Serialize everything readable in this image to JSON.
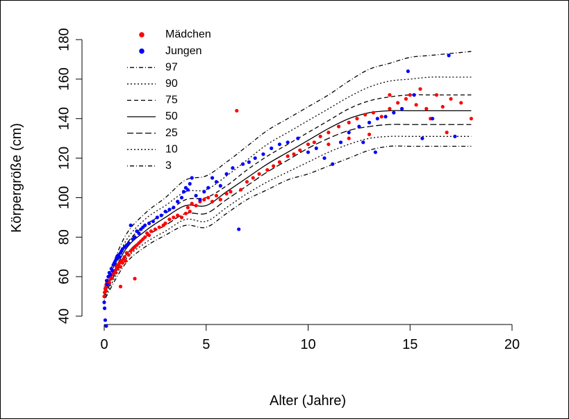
{
  "chart_data": {
    "type": "scatter",
    "xlabel": "Alter (Jahre)",
    "ylabel": "Körpergröße (cm)",
    "xlim": [
      0,
      20
    ],
    "ylim": [
      35,
      182
    ],
    "x_ticks": [
      "0",
      "5",
      "10",
      "15",
      "20"
    ],
    "y_ticks": [
      "40",
      "60",
      "80",
      "100",
      "120",
      "140",
      "160",
      "180"
    ],
    "grid": false,
    "legend_position": "top-left",
    "series_points": [
      {
        "name": "Mädchen",
        "color": "#ff0000",
        "points": [
          [
            0,
            50
          ],
          [
            0.02,
            52
          ],
          [
            0.05,
            54
          ],
          [
            0.08,
            53
          ],
          [
            0.1,
            56
          ],
          [
            0.12,
            55
          ],
          [
            0.15,
            57
          ],
          [
            0.2,
            58
          ],
          [
            0.25,
            57
          ],
          [
            0.3,
            60
          ],
          [
            0.35,
            59
          ],
          [
            0.4,
            61
          ],
          [
            0.45,
            62
          ],
          [
            0.5,
            63
          ],
          [
            0.55,
            62
          ],
          [
            0.6,
            65
          ],
          [
            0.65,
            64
          ],
          [
            0.7,
            66
          ],
          [
            0.75,
            67
          ],
          [
            0.8,
            65
          ],
          [
            0.85,
            68
          ],
          [
            0.9,
            67
          ],
          [
            0.95,
            69
          ],
          [
            1,
            70
          ],
          [
            1.05,
            68
          ],
          [
            1.1,
            72
          ],
          [
            1.2,
            71
          ],
          [
            1.3,
            73
          ],
          [
            1.4,
            74
          ],
          [
            1.5,
            75
          ],
          [
            1.6,
            76
          ],
          [
            1.7,
            77
          ],
          [
            1.8,
            78
          ],
          [
            1.9,
            79
          ],
          [
            2,
            80
          ],
          [
            2.1,
            82
          ],
          [
            2.2,
            81
          ],
          [
            2.3,
            83
          ],
          [
            2.5,
            84
          ],
          [
            2.7,
            85
          ],
          [
            2.9,
            86
          ],
          [
            3.0,
            87
          ],
          [
            3.2,
            89
          ],
          [
            3.4,
            90
          ],
          [
            3.6,
            91
          ],
          [
            3.8,
            90
          ],
          [
            4.0,
            92
          ],
          [
            4.1,
            95
          ],
          [
            4.2,
            93
          ],
          [
            4.3,
            97
          ],
          [
            4.5,
            96
          ],
          [
            4.7,
            98
          ],
          [
            4.9,
            99
          ],
          [
            5.1,
            100
          ],
          [
            5.3,
            98
          ],
          [
            5.5,
            101
          ],
          [
            5.7,
            99
          ],
          [
            6.0,
            102
          ],
          [
            6.2,
            103
          ],
          [
            6.5,
            144
          ],
          [
            6.7,
            104
          ],
          [
            7.0,
            108
          ],
          [
            7.3,
            110
          ],
          [
            7.6,
            112
          ],
          [
            8.0,
            114
          ],
          [
            8.3,
            116
          ],
          [
            8.6,
            118
          ],
          [
            9.0,
            121
          ],
          [
            9.3,
            122
          ],
          [
            9.6,
            124
          ],
          [
            10.0,
            127
          ],
          [
            10.3,
            128
          ],
          [
            10.6,
            131
          ],
          [
            11.0,
            133
          ],
          [
            11.5,
            136
          ],
          [
            12.0,
            138
          ],
          [
            12.4,
            140
          ],
          [
            12.8,
            142
          ],
          [
            13.2,
            143
          ],
          [
            13.6,
            141
          ],
          [
            14.0,
            145
          ],
          [
            14.4,
            148
          ],
          [
            14.8,
            150
          ],
          [
            15.0,
            152
          ],
          [
            15.3,
            147
          ],
          [
            15.5,
            155
          ],
          [
            15.8,
            145
          ],
          [
            16.0,
            140
          ],
          [
            16.3,
            152
          ],
          [
            16.6,
            146
          ],
          [
            16.8,
            133
          ],
          [
            17.0,
            150
          ],
          [
            17.5,
            148
          ],
          [
            18.0,
            140
          ],
          [
            14.0,
            152
          ],
          [
            13.0,
            132
          ],
          [
            12.0,
            130
          ],
          [
            11.0,
            127
          ],
          [
            1.5,
            59
          ],
          [
            0.8,
            55
          ]
        ]
      },
      {
        "name": "Jungen",
        "color": "#0000ff",
        "points": [
          [
            0,
            47
          ],
          [
            0.02,
            44
          ],
          [
            0.05,
            38
          ],
          [
            0.1,
            35
          ],
          [
            0.12,
            58
          ],
          [
            0.15,
            56
          ],
          [
            0.2,
            60
          ],
          [
            0.25,
            62
          ],
          [
            0.3,
            61
          ],
          [
            0.35,
            64
          ],
          [
            0.4,
            63
          ],
          [
            0.45,
            66
          ],
          [
            0.5,
            67
          ],
          [
            0.55,
            68
          ],
          [
            0.6,
            69
          ],
          [
            0.65,
            70
          ],
          [
            0.7,
            71
          ],
          [
            0.75,
            70
          ],
          [
            0.8,
            72
          ],
          [
            0.85,
            73
          ],
          [
            0.9,
            74
          ],
          [
            1,
            75
          ],
          [
            1.1,
            76
          ],
          [
            1.2,
            77
          ],
          [
            1.3,
            86
          ],
          [
            1.4,
            79
          ],
          [
            1.5,
            80
          ],
          [
            1.6,
            83
          ],
          [
            1.7,
            82
          ],
          [
            1.8,
            84
          ],
          [
            1.9,
            85
          ],
          [
            2,
            86
          ],
          [
            2.2,
            87
          ],
          [
            2.4,
            88
          ],
          [
            2.6,
            90
          ],
          [
            2.8,
            91
          ],
          [
            3.0,
            93
          ],
          [
            3.2,
            94
          ],
          [
            3.4,
            95
          ],
          [
            3.6,
            98
          ],
          [
            3.8,
            100
          ],
          [
            3.9,
            103
          ],
          [
            4.0,
            105
          ],
          [
            4.1,
            104
          ],
          [
            4.2,
            107
          ],
          [
            4.3,
            110
          ],
          [
            4.5,
            101
          ],
          [
            4.7,
            99
          ],
          [
            4.9,
            103
          ],
          [
            5.1,
            105
          ],
          [
            5.3,
            110
          ],
          [
            5.5,
            108
          ],
          [
            5.7,
            106
          ],
          [
            6.0,
            112
          ],
          [
            6.3,
            115
          ],
          [
            6.6,
            84
          ],
          [
            6.8,
            117
          ],
          [
            7.1,
            118
          ],
          [
            7.4,
            120
          ],
          [
            7.8,
            122
          ],
          [
            8.2,
            125
          ],
          [
            8.6,
            127
          ],
          [
            9.0,
            128
          ],
          [
            9.5,
            130
          ],
          [
            10.0,
            123
          ],
          [
            10.4,
            125
          ],
          [
            10.8,
            120
          ],
          [
            11.2,
            117
          ],
          [
            11.6,
            128
          ],
          [
            12.0,
            133
          ],
          [
            12.5,
            136
          ],
          [
            13.0,
            138
          ],
          [
            13.4,
            140
          ],
          [
            13.8,
            141
          ],
          [
            14.2,
            143
          ],
          [
            14.6,
            145
          ],
          [
            14.9,
            164
          ],
          [
            15.2,
            152
          ],
          [
            15.6,
            130
          ],
          [
            16.1,
            140
          ],
          [
            16.9,
            172
          ],
          [
            17.2,
            131
          ],
          [
            13.3,
            123
          ],
          [
            12.7,
            128
          ]
        ]
      }
    ],
    "series": [
      {
        "name": "97",
        "dash": "dashdot",
        "x": [
          0,
          1,
          2,
          3,
          4,
          5,
          6,
          7,
          8,
          9,
          10,
          11,
          12,
          13,
          14,
          15,
          16,
          17,
          18
        ],
        "values": [
          55,
          80,
          92,
          100,
          109,
          111,
          118,
          126,
          134,
          140,
          146,
          152,
          159,
          165,
          168,
          171,
          172,
          173,
          174
        ]
      },
      {
        "name": "90",
        "dash": "dotted",
        "x": [
          0,
          1,
          2,
          3,
          4,
          5,
          6,
          7,
          8,
          9,
          10,
          11,
          12,
          13,
          14,
          15,
          16,
          17,
          18
        ],
        "values": [
          53,
          77,
          89,
          96,
          103,
          104,
          111,
          119,
          127,
          133,
          139,
          145,
          151,
          156,
          159,
          160,
          161,
          161,
          161
        ]
      },
      {
        "name": "75",
        "dash": "dashed",
        "x": [
          0,
          1,
          2,
          3,
          4,
          5,
          6,
          7,
          8,
          9,
          10,
          11,
          12,
          13,
          14,
          15,
          16,
          17,
          18
        ],
        "values": [
          52,
          75,
          86,
          92,
          99,
          100,
          106,
          114,
          121,
          127,
          133,
          139,
          145,
          149,
          151,
          152,
          152,
          152,
          152
        ]
      },
      {
        "name": "50",
        "dash": "solid",
        "x": [
          0,
          1,
          2,
          3,
          4,
          5,
          6,
          7,
          8,
          9,
          10,
          11,
          12,
          13,
          14,
          15,
          16,
          17,
          18
        ],
        "values": [
          51,
          73,
          83,
          90,
          96,
          96,
          103,
          110,
          117,
          123,
          129,
          135,
          140,
          143,
          144,
          144,
          144,
          144,
          144
        ]
      },
      {
        "name": "25",
        "dash": "longdash",
        "x": [
          0,
          1,
          2,
          3,
          4,
          5,
          6,
          7,
          8,
          9,
          10,
          11,
          12,
          13,
          14,
          15,
          16,
          17,
          18
        ],
        "values": [
          50,
          70,
          80,
          86,
          92,
          92,
          99,
          106,
          113,
          119,
          125,
          130,
          134,
          136,
          137,
          137,
          137,
          137,
          137
        ]
      },
      {
        "name": "10",
        "dash": "dotted",
        "x": [
          0,
          1,
          2,
          3,
          4,
          5,
          6,
          7,
          8,
          9,
          10,
          11,
          12,
          13,
          14,
          15,
          16,
          17,
          18
        ],
        "values": [
          49,
          68,
          77,
          83,
          89,
          88,
          95,
          102,
          108,
          113,
          118,
          123,
          127,
          130,
          131,
          131,
          131,
          131,
          131
        ]
      },
      {
        "name": "3",
        "dash": "dashdot",
        "x": [
          0,
          1,
          2,
          3,
          4,
          5,
          6,
          7,
          8,
          9,
          10,
          11,
          12,
          13,
          14,
          15,
          16,
          17,
          18
        ],
        "values": [
          48,
          66,
          75,
          81,
          86,
          85,
          92,
          99,
          104,
          109,
          112,
          116,
          120,
          124,
          126,
          126,
          126,
          126,
          126
        ]
      }
    ],
    "legend": [
      {
        "label": "Mädchen",
        "kind": "point",
        "color": "#ff0000"
      },
      {
        "label": "Jungen",
        "kind": "point",
        "color": "#0000ff"
      },
      {
        "label": "97",
        "kind": "line",
        "dash": "dashdot"
      },
      {
        "label": "90",
        "kind": "line",
        "dash": "dotted"
      },
      {
        "label": "75",
        "kind": "line",
        "dash": "dashed"
      },
      {
        "label": "50",
        "kind": "line",
        "dash": "solid"
      },
      {
        "label": "25",
        "kind": "line",
        "dash": "longdash"
      },
      {
        "label": "10",
        "kind": "line",
        "dash": "dotted"
      },
      {
        "label": "3",
        "kind": "line",
        "dash": "dashdot"
      }
    ]
  }
}
